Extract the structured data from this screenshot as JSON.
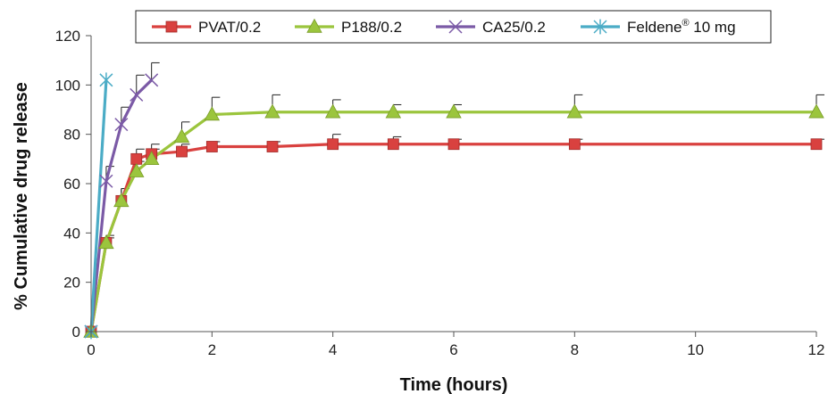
{
  "chart_data": {
    "type": "line",
    "title": "",
    "xlabel": "Time (hours)",
    "ylabel": "% Cumulative drug release",
    "xlim": [
      0,
      12
    ],
    "ylim": [
      0,
      120
    ],
    "xticks": [
      0,
      2,
      4,
      6,
      8,
      10,
      12
    ],
    "yticks": [
      0,
      20,
      40,
      60,
      80,
      100,
      120
    ],
    "grid": false,
    "legend_position": "top",
    "series": [
      {
        "name": "PVAT/0.2",
        "legend_label": "PVAT/0.2",
        "color": "#d9413f",
        "marker": "square",
        "x": [
          0,
          0.25,
          0.5,
          0.75,
          1,
          1.5,
          2,
          3,
          4,
          5,
          6,
          8,
          12
        ],
        "y": [
          0,
          36,
          53,
          70,
          72,
          73,
          75,
          75,
          76,
          76,
          76,
          76,
          76
        ],
        "error": [
          0,
          2,
          5,
          4,
          4,
          3,
          2,
          2,
          4,
          3,
          2,
          2,
          2
        ]
      },
      {
        "name": "P188/0.2",
        "legend_label": "P188/0.2",
        "color": "#9bc53d",
        "marker": "triangle",
        "x": [
          0,
          0.25,
          0.5,
          0.75,
          1,
          1.5,
          2,
          3,
          4,
          5,
          6,
          8,
          12
        ],
        "y": [
          0,
          36,
          53,
          65,
          70,
          79,
          88,
          89,
          89,
          89,
          89,
          89,
          89
        ],
        "error": [
          0,
          3,
          5,
          4,
          4,
          6,
          7,
          7,
          5,
          3,
          3,
          7,
          7
        ]
      },
      {
        "name": "CA25/0.2",
        "legend_label": "CA25/0.2",
        "color": "#7b5aa6",
        "marker": "x",
        "x": [
          0,
          0.25,
          0.5,
          0.75,
          1
        ],
        "y": [
          0,
          61,
          84,
          96,
          102
        ],
        "error": [
          0,
          6,
          7,
          8,
          7
        ]
      },
      {
        "name": "Feldene® 10 mg",
        "legend_label": "Feldene",
        "legend_sup": "®",
        "legend_suffix": " 10 mg",
        "color": "#4bacc6",
        "marker": "asterisk",
        "x": [
          0,
          0.25
        ],
        "y": [
          0,
          102
        ],
        "error": [
          0,
          0
        ]
      }
    ]
  }
}
